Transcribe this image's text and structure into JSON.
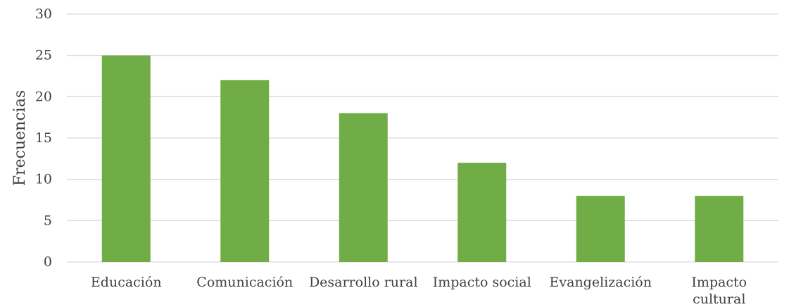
{
  "chart_data": {
    "type": "bar",
    "categories": [
      [
        "Educación"
      ],
      [
        "Comunicación"
      ],
      [
        "Desarrollo rural"
      ],
      [
        "Impacto social"
      ],
      [
        "Evangelización"
      ],
      [
        "Impacto",
        "cultural"
      ]
    ],
    "values": [
      25,
      22,
      18,
      12,
      8,
      8
    ],
    "title": "",
    "xlabel": "",
    "ylabel": "Frecuencias",
    "ylim": [
      0,
      30
    ],
    "yticks": [
      0,
      5,
      10,
      15,
      20,
      25,
      30
    ],
    "grid": true,
    "legend": "none",
    "bar_color": "#70AD47",
    "grid_color": "#D9D9D9"
  }
}
